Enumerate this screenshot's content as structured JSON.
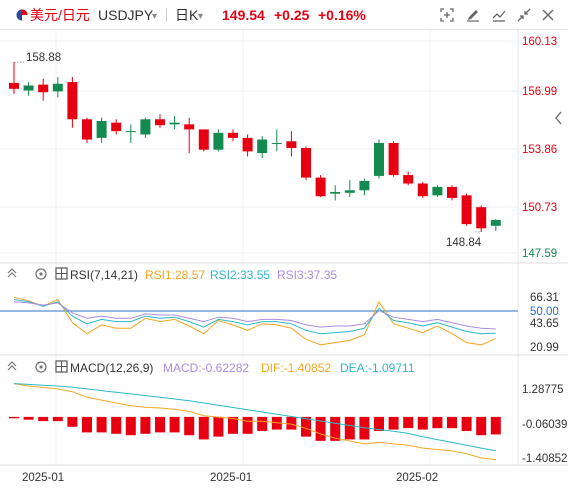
{
  "header": {
    "currency_name": "美元/日元",
    "symbol": "USDJPY",
    "symbol_caret": "▾",
    "period": "日K",
    "period_caret": "▾",
    "price": "149.54",
    "change": "+0.25",
    "change_pct": "+0.16%",
    "icons": [
      "flag-icon",
      "fit-screen-icon",
      "draw-icon",
      "indicator-icon",
      "collapse-icon",
      "close-icon"
    ]
  },
  "colors": {
    "up": "#e60012",
    "down": "#138a50",
    "rsi1": "#f5a623",
    "rsi2": "#2cb8c9",
    "rsi3": "#a98de0",
    "macd": "#2cb8c9",
    "dif": "#f5a623",
    "dea": "#2cb8c9",
    "price_axis": "#e60012",
    "grid": "#f0f0f0"
  },
  "main_panel": {
    "y_ticks": [
      "160.13",
      "156.99",
      "153.86",
      "150.73",
      "147.59"
    ],
    "hi_label": "158.88",
    "lo_label": "148.84"
  },
  "rsi_panel": {
    "title": "RSI(7,14,21)",
    "rsi1_label": "RSI1:28.57",
    "rsi2_label": "RSI2:33.55",
    "rsi3_label": "RSI3:37.35",
    "y_ticks": [
      "66.31",
      "50.00",
      "43.65",
      "20.99"
    ]
  },
  "macd_panel": {
    "title": "MACD(12,26,9)",
    "macd_label": "MACD:-0.62282",
    "dif_label": "DIF:-1.40852",
    "dea_label": "DEA:-1.09711",
    "y_ticks": [
      "1.28775",
      "-0.06039",
      "-1.40852"
    ]
  },
  "x_axis": {
    "labels": [
      "2025-01",
      "2025-01",
      "2025-02"
    ]
  },
  "chart_data": [
    {
      "type": "candlestick",
      "y_range": [
        147.59,
        160.13
      ],
      "y_ticks": [
        160.13,
        156.99,
        153.86,
        150.73,
        147.59
      ],
      "annotations": {
        "high": 158.88,
        "low": 148.84
      },
      "candles": [
        {
          "o": 157.65,
          "h": 158.88,
          "l": 157.0,
          "c": 157.3
        },
        {
          "o": 157.2,
          "h": 157.7,
          "l": 156.9,
          "c": 157.5
        },
        {
          "o": 157.55,
          "h": 157.9,
          "l": 156.6,
          "c": 157.1
        },
        {
          "o": 157.15,
          "h": 158.0,
          "l": 156.8,
          "c": 157.6
        },
        {
          "o": 157.7,
          "h": 158.0,
          "l": 155.0,
          "c": 155.5
        },
        {
          "o": 155.5,
          "h": 155.6,
          "l": 154.1,
          "c": 154.3
        },
        {
          "o": 154.4,
          "h": 155.6,
          "l": 154.1,
          "c": 155.4
        },
        {
          "o": 155.3,
          "h": 155.5,
          "l": 154.6,
          "c": 154.8
        },
        {
          "o": 154.8,
          "h": 155.2,
          "l": 154.1,
          "c": 154.8
        },
        {
          "o": 154.6,
          "h": 155.6,
          "l": 154.4,
          "c": 155.5
        },
        {
          "o": 155.5,
          "h": 155.8,
          "l": 155.0,
          "c": 155.15
        },
        {
          "o": 155.2,
          "h": 155.7,
          "l": 154.9,
          "c": 155.3
        },
        {
          "o": 155.2,
          "h": 155.6,
          "l": 153.5,
          "c": 154.9
        },
        {
          "o": 154.9,
          "h": 154.9,
          "l": 153.6,
          "c": 153.7
        },
        {
          "o": 153.7,
          "h": 154.9,
          "l": 153.6,
          "c": 154.7
        },
        {
          "o": 154.7,
          "h": 154.9,
          "l": 154.2,
          "c": 154.4
        },
        {
          "o": 154.4,
          "h": 154.6,
          "l": 153.3,
          "c": 153.6
        },
        {
          "o": 153.5,
          "h": 154.5,
          "l": 153.2,
          "c": 154.3
        },
        {
          "o": 154.1,
          "h": 154.9,
          "l": 153.6,
          "c": 154.1
        },
        {
          "o": 154.2,
          "h": 154.8,
          "l": 153.3,
          "c": 153.8
        },
        {
          "o": 153.8,
          "h": 153.9,
          "l": 151.9,
          "c": 152.05
        },
        {
          "o": 152.05,
          "h": 152.2,
          "l": 150.9,
          "c": 150.95
        },
        {
          "o": 151.1,
          "h": 151.6,
          "l": 150.7,
          "c": 151.2
        },
        {
          "o": 151.15,
          "h": 151.9,
          "l": 150.9,
          "c": 151.3
        },
        {
          "o": 151.3,
          "h": 152.0,
          "l": 151.0,
          "c": 151.85
        },
        {
          "o": 152.15,
          "h": 154.3,
          "l": 152.0,
          "c": 154.1
        },
        {
          "o": 154.1,
          "h": 154.2,
          "l": 152.1,
          "c": 152.2
        },
        {
          "o": 152.2,
          "h": 152.4,
          "l": 151.6,
          "c": 151.7
        },
        {
          "o": 151.7,
          "h": 151.8,
          "l": 150.85,
          "c": 150.95
        },
        {
          "o": 151.0,
          "h": 151.6,
          "l": 150.9,
          "c": 151.5
        },
        {
          "o": 151.5,
          "h": 151.6,
          "l": 150.7,
          "c": 150.85
        },
        {
          "o": 151.0,
          "h": 151.1,
          "l": 149.2,
          "c": 149.3
        },
        {
          "o": 150.3,
          "h": 150.4,
          "l": 148.84,
          "c": 149.05
        },
        {
          "o": 149.2,
          "h": 149.6,
          "l": 148.9,
          "c": 149.54
        }
      ]
    },
    {
      "type": "line",
      "title": "RSI(7,14,21)",
      "y_range": [
        20.99,
        66.31
      ],
      "y_ticks": [
        66.31,
        50.0,
        43.65,
        20.99
      ],
      "reference_line": 50.0,
      "series": [
        {
          "name": "RSI1",
          "values": [
            66,
            63,
            58,
            64,
            43,
            33,
            41,
            38,
            38,
            47,
            44,
            46,
            40,
            33,
            45,
            41,
            36,
            42,
            41,
            38,
            28,
            23,
            25,
            27,
            32,
            62,
            42,
            38,
            34,
            40,
            33,
            25,
            23,
            28.57
          ]
        },
        {
          "name": "RSI2",
          "values": [
            64,
            62,
            58,
            62,
            49,
            42,
            46,
            44,
            44,
            49,
            47,
            48,
            44,
            39,
            46,
            44,
            41,
            44,
            44,
            42,
            36,
            33,
            34,
            35,
            38,
            56,
            45,
            43,
            40,
            43,
            39,
            35,
            33,
            33.55
          ]
        },
        {
          "name": "RSI3",
          "values": [
            62,
            61,
            59,
            61,
            52,
            47,
            49,
            47,
            47,
            51,
            50,
            50,
            47,
            44,
            48,
            47,
            44,
            46,
            46,
            45,
            41,
            39,
            40,
            40,
            42,
            54,
            48,
            46,
            44,
            46,
            43,
            40,
            38,
            37.35
          ]
        }
      ]
    },
    {
      "type": "bar+line",
      "title": "MACD(12,26,9)",
      "y_range": [
        -1.6,
        1.45
      ],
      "y_ticks": [
        1.28775,
        -0.06039,
        -1.40852
      ],
      "series": [
        {
          "name": "MACD",
          "values": [
            -0.05,
            -0.1,
            -0.15,
            -0.15,
            -0.35,
            -0.55,
            -0.55,
            -0.6,
            -0.65,
            -0.6,
            -0.55,
            -0.55,
            -0.65,
            -0.8,
            -0.7,
            -0.6,
            -0.6,
            -0.5,
            -0.45,
            -0.45,
            -0.7,
            -0.85,
            -0.85,
            -0.8,
            -0.8,
            -0.5,
            -0.45,
            -0.4,
            -0.45,
            -0.4,
            -0.4,
            -0.5,
            -0.65,
            -0.62282
          ]
        },
        {
          "name": "DIF",
          "values": [
            1.28775,
            1.2,
            1.15,
            1.1,
            1.0,
            0.8,
            0.7,
            0.6,
            0.5,
            0.45,
            0.42,
            0.38,
            0.3,
            0.15,
            0.1,
            0.05,
            -0.05,
            -0.05,
            -0.1,
            -0.15,
            -0.3,
            -0.5,
            -0.65,
            -0.75,
            -0.85,
            -0.8,
            -0.85,
            -0.9,
            -1.0,
            -1.05,
            -1.1,
            -1.2,
            -1.35,
            -1.40852
          ]
        },
        {
          "name": "DEA",
          "values": [
            1.28775,
            1.26,
            1.23,
            1.2,
            1.16,
            1.1,
            1.04,
            0.98,
            0.92,
            0.86,
            0.8,
            0.74,
            0.68,
            0.6,
            0.52,
            0.44,
            0.36,
            0.28,
            0.2,
            0.12,
            0.04,
            -0.04,
            -0.12,
            -0.2,
            -0.28,
            -0.34,
            -0.4,
            -0.48,
            -0.6,
            -0.7,
            -0.8,
            -0.9,
            -1.0,
            -1.09711
          ]
        }
      ]
    }
  ]
}
